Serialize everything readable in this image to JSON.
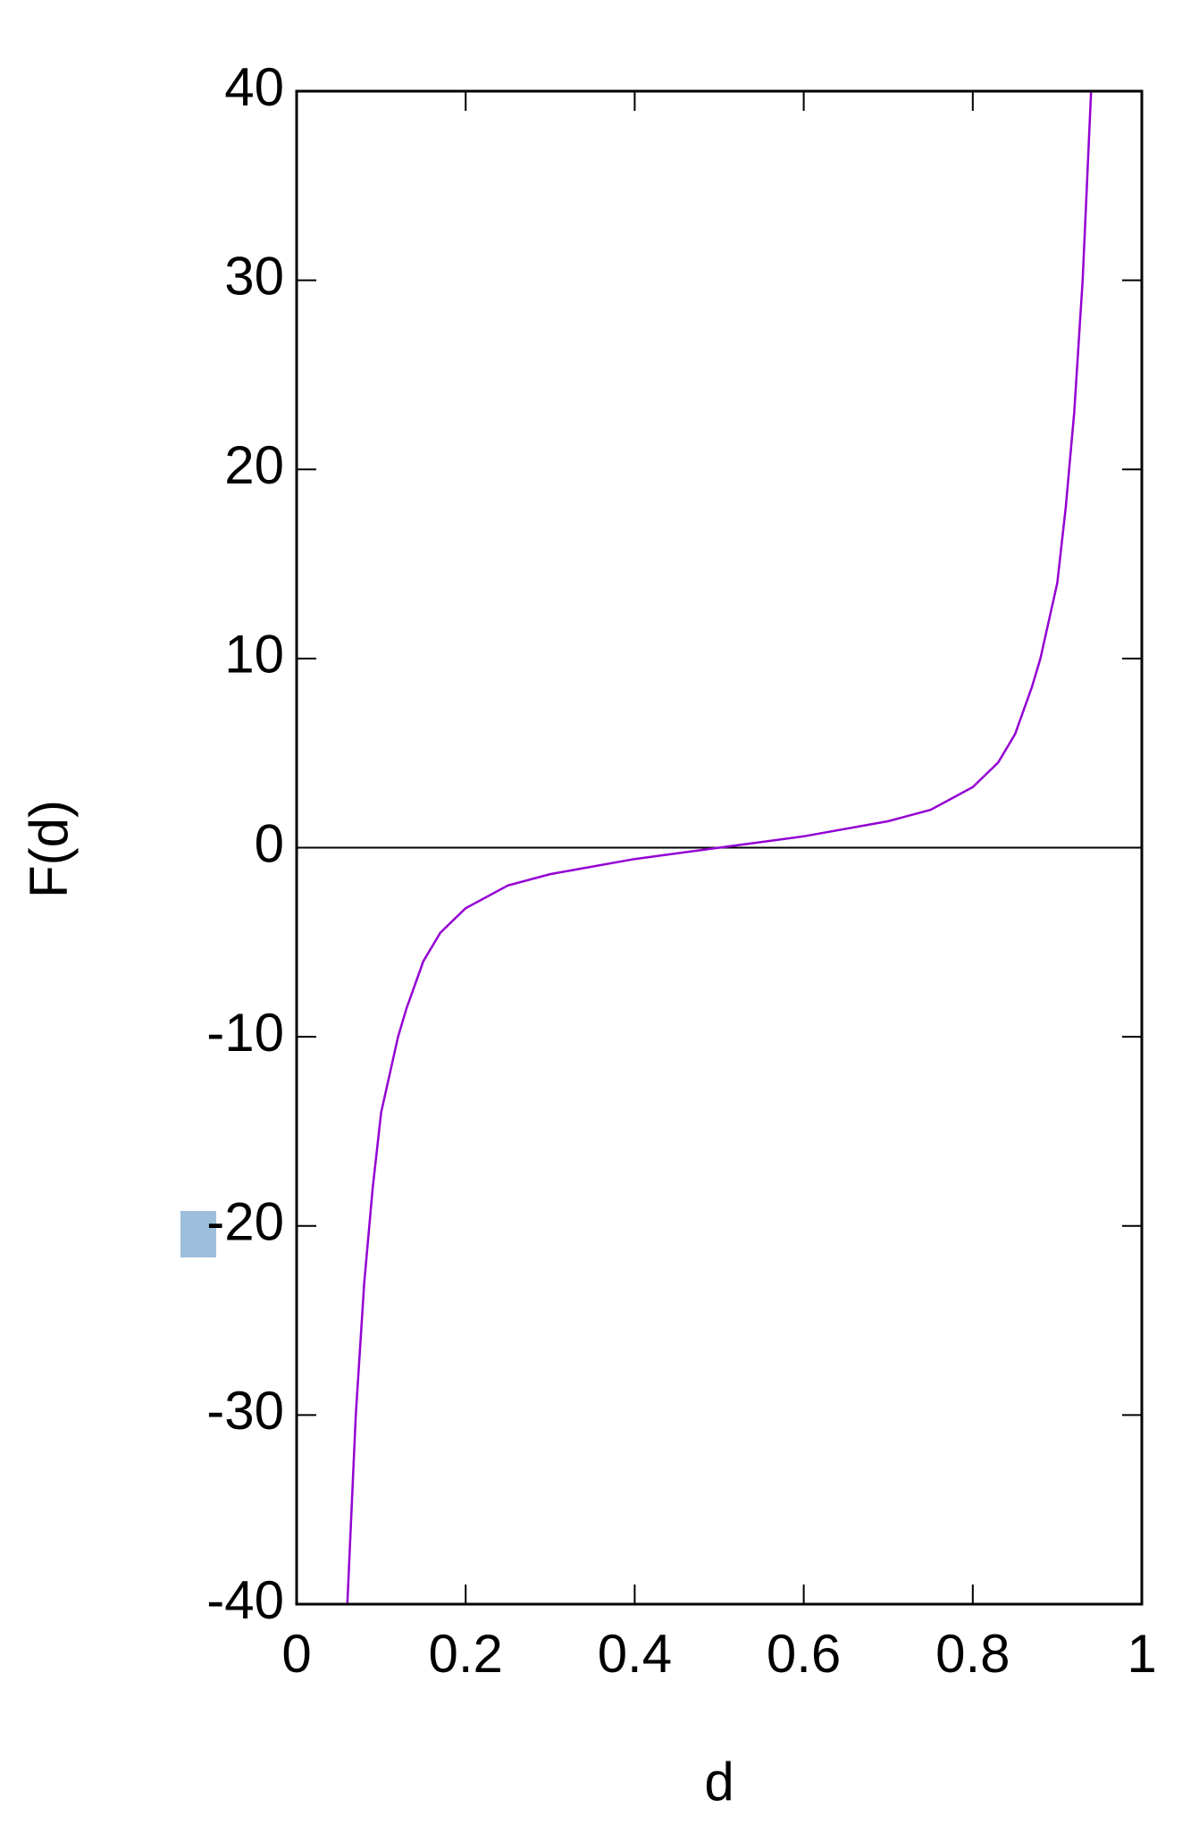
{
  "chart_data": {
    "type": "line",
    "xlabel": "d",
    "ylabel": "F(d)",
    "x": [
      0.06,
      0.07,
      0.08,
      0.09,
      0.1,
      0.12,
      0.13,
      0.15,
      0.17,
      0.2,
      0.25,
      0.3,
      0.4,
      0.5,
      0.6,
      0.7,
      0.75,
      0.8,
      0.83,
      0.85,
      0.87,
      0.88,
      0.9,
      0.91,
      0.92,
      0.93,
      0.94
    ],
    "series": [
      {
        "name": "F(d)",
        "color": "#9400d3",
        "values": [
          -40,
          -30,
          -23,
          -18,
          -14,
          -10,
          -8.5,
          -6,
          -4.5,
          -3.2,
          -2,
          -1.4,
          -0.6,
          0,
          0.6,
          1.4,
          2,
          3.2,
          4.5,
          6,
          8.5,
          10,
          14,
          18,
          23,
          30,
          40
        ]
      }
    ],
    "xlim": [
      0,
      1
    ],
    "ylim": [
      -40,
      40
    ],
    "xticks": [
      0,
      0.2,
      0.4,
      0.6,
      0.8,
      1
    ],
    "yticks": [
      -40,
      -30,
      -20,
      -10,
      0,
      10,
      20,
      30,
      40
    ],
    "zero_line": true,
    "grid": false
  }
}
